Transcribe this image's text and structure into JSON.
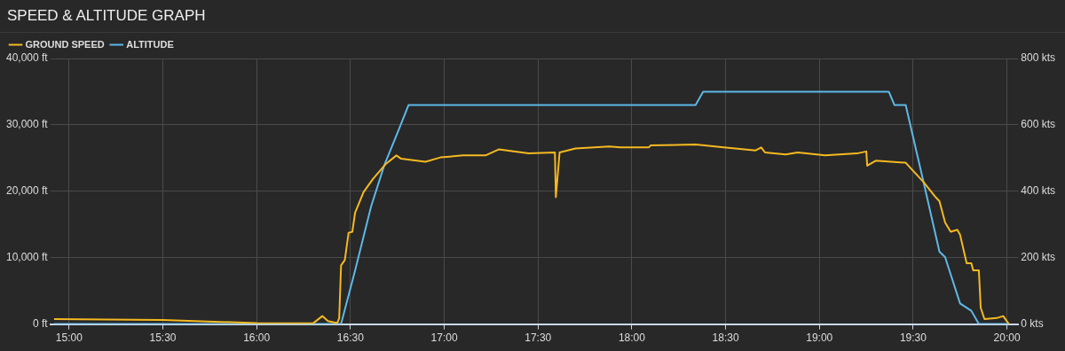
{
  "chart_data": {
    "type": "line",
    "title": "SPEED & ALTITUDE GRAPH",
    "xlim": [
      14.9,
      20.06
    ],
    "xticks": [
      {
        "value": 15,
        "label": "15:00"
      },
      {
        "value": 15.5,
        "label": "15:30"
      },
      {
        "value": 16,
        "label": "16:00"
      },
      {
        "value": 16.5,
        "label": "16:30"
      },
      {
        "value": 17,
        "label": "17:00"
      },
      {
        "value": 17.5,
        "label": "17:30"
      },
      {
        "value": 18,
        "label": "18:00"
      },
      {
        "value": 18.5,
        "label": "18:30"
      },
      {
        "value": 19,
        "label": "19:00"
      },
      {
        "value": 19.5,
        "label": "19:30"
      },
      {
        "value": 20,
        "label": "20:00"
      }
    ],
    "ylim": [
      0,
      40000
    ],
    "yticks": [
      {
        "value": 0,
        "label": "0 ft"
      },
      {
        "value": 10000,
        "label": "10,000 ft"
      },
      {
        "value": 20000,
        "label": "20,000 ft"
      },
      {
        "value": 30000,
        "label": "30,000 ft"
      },
      {
        "value": 40000,
        "label": "40,000 ft"
      }
    ],
    "y2lim": [
      0,
      800
    ],
    "y2ticks": [
      {
        "value": 0,
        "label": "0 kts"
      },
      {
        "value": 200,
        "label": "200 kts"
      },
      {
        "value": 400,
        "label": "400 kts"
      },
      {
        "value": 600,
        "label": "600 kts"
      },
      {
        "value": 800,
        "label": "800 kts"
      }
    ],
    "grid": true,
    "legend": "top left",
    "marker": "none",
    "line_style": "solid",
    "series": [
      {
        "name": "GROUND SPEED",
        "color": "#f5b921",
        "axis": "y2",
        "x": [
          14.92,
          15.5,
          16.0,
          16.3,
          16.35,
          16.38,
          16.43,
          16.44,
          16.45,
          16.47,
          16.49,
          16.51,
          16.525,
          16.57,
          16.62,
          16.69,
          16.745,
          16.77,
          16.9,
          16.98,
          17.1,
          17.22,
          17.29,
          17.45,
          17.59,
          17.595,
          17.615,
          17.7,
          17.88,
          17.94,
          18.09,
          18.1,
          18.34,
          18.49,
          18.66,
          18.69,
          18.71,
          18.82,
          18.885,
          19.03,
          19.2,
          19.25,
          19.255,
          19.3,
          19.46,
          19.555,
          19.62,
          19.64,
          19.67,
          19.7,
          19.735,
          19.75,
          19.785,
          19.81,
          19.82,
          19.85,
          19.86,
          19.88,
          19.945,
          19.98,
          20.01
        ],
        "values": [
          15,
          12,
          3,
          2,
          24,
          9,
          3,
          18,
          177,
          193,
          275,
          278,
          336,
          398,
          437,
          483,
          508,
          498,
          489,
          502,
          508,
          508,
          526,
          514,
          517,
          382,
          517,
          529,
          535,
          532,
          532,
          538,
          541,
          532,
          523,
          532,
          517,
          511,
          517,
          508,
          514,
          520,
          477,
          492,
          486,
          428,
          382,
          370,
          306,
          278,
          284,
          269,
          183,
          183,
          162,
          162,
          49,
          15,
          18,
          24,
          0
        ]
      },
      {
        "name": "ALTITUDE",
        "color": "#5db8e8",
        "x": [
          14.92,
          16.45,
          16.525,
          16.61,
          16.68,
          16.755,
          16.81,
          18.34,
          18.38,
          19.37,
          19.4,
          19.46,
          19.555,
          19.64,
          19.67,
          19.75,
          19.81,
          19.85,
          20.01
        ],
        "values": [
          0,
          0,
          8100,
          17700,
          23900,
          29100,
          33000,
          33000,
          35000,
          35000,
          33000,
          33000,
          21400,
          10900,
          10100,
          3100,
          2000,
          0,
          0
        ]
      }
    ]
  }
}
